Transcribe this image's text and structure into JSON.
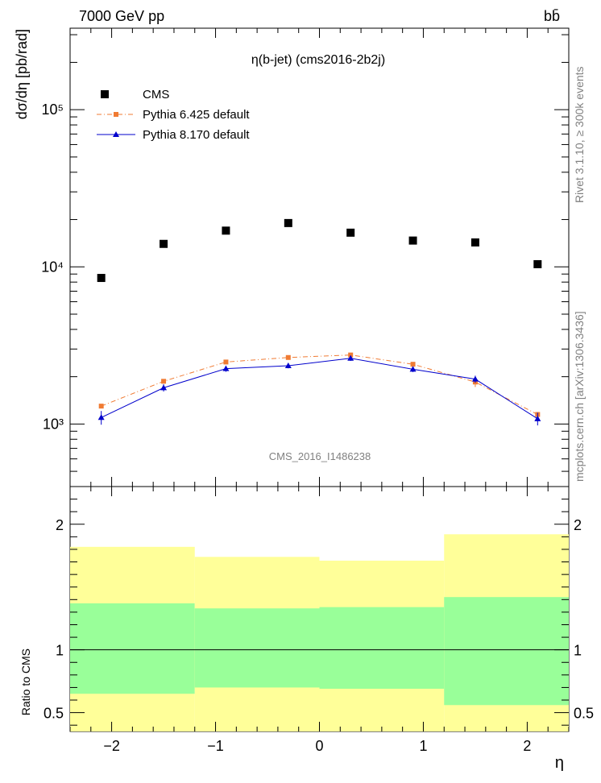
{
  "header": {
    "energy_label": "7000 GeV pp",
    "process_label": "bb̄"
  },
  "side_labels": {
    "rivet": "Rivet 3.1.10, ≥ 300k events",
    "mcplots": "mcplots.cern.ch [arXiv:1306.3436]"
  },
  "chart_data": {
    "type": "scatter",
    "title": "η(b-jet) (cms2016-2b2j)",
    "watermark": "CMS_2016_I1486238",
    "ylabel": "dσ/dη [pb/rad]",
    "xlabel": "η",
    "yscale": "log",
    "ylim": [
      400,
      330000
    ],
    "xlim": [
      -2.4,
      2.4
    ],
    "x_ticks": [
      "−2",
      "−1",
      "0",
      "1",
      "2"
    ],
    "y_tick_labels": [
      "10³",
      "10⁴",
      "10⁵"
    ],
    "x": [
      -2.1,
      -1.5,
      -0.9,
      -0.3,
      0.3,
      0.9,
      1.5,
      2.1
    ],
    "series": [
      {
        "name": "CMS",
        "color": "#000000",
        "marker": "square",
        "values": [
          8500,
          14000,
          17000,
          19000,
          16500,
          14700,
          14300,
          10400
        ]
      },
      {
        "name": "Pythia 6.425 default",
        "color": "#f07b33",
        "marker": "square",
        "line": "dash-dot",
        "values": [
          1300,
          1870,
          2480,
          2650,
          2750,
          2400,
          1850,
          1150
        ],
        "errors": [
          40,
          50,
          60,
          60,
          60,
          60,
          130,
          40
        ]
      },
      {
        "name": "Pythia 8.170 default",
        "color": "#0000cc",
        "marker": "triangle",
        "line": "solid",
        "values": [
          1100,
          1700,
          2250,
          2350,
          2620,
          2230,
          1930,
          1080
        ],
        "errors": [
          110,
          90,
          100,
          90,
          100,
          90,
          100,
          100
        ]
      }
    ],
    "legend_position": "top-left",
    "ratio_panel": {
      "ylabel": "Ratio to CMS",
      "ylim": [
        0.35,
        2.3
      ],
      "y_ticks": [
        "0.5",
        "1",
        "2"
      ],
      "bin_edges": [
        -2.4,
        -1.2,
        0,
        1.2,
        2.4
      ],
      "band_outer_low": [
        0.35,
        0.35,
        0.35,
        0.35
      ],
      "band_outer_high": [
        1.82,
        1.74,
        1.71,
        1.92
      ],
      "band_inner_low": [
        0.65,
        0.7,
        0.69,
        0.56
      ],
      "band_inner_high": [
        1.37,
        1.33,
        1.34,
        1.42
      ],
      "outer_color": "#ffff99",
      "inner_color": "#99ff99"
    }
  }
}
